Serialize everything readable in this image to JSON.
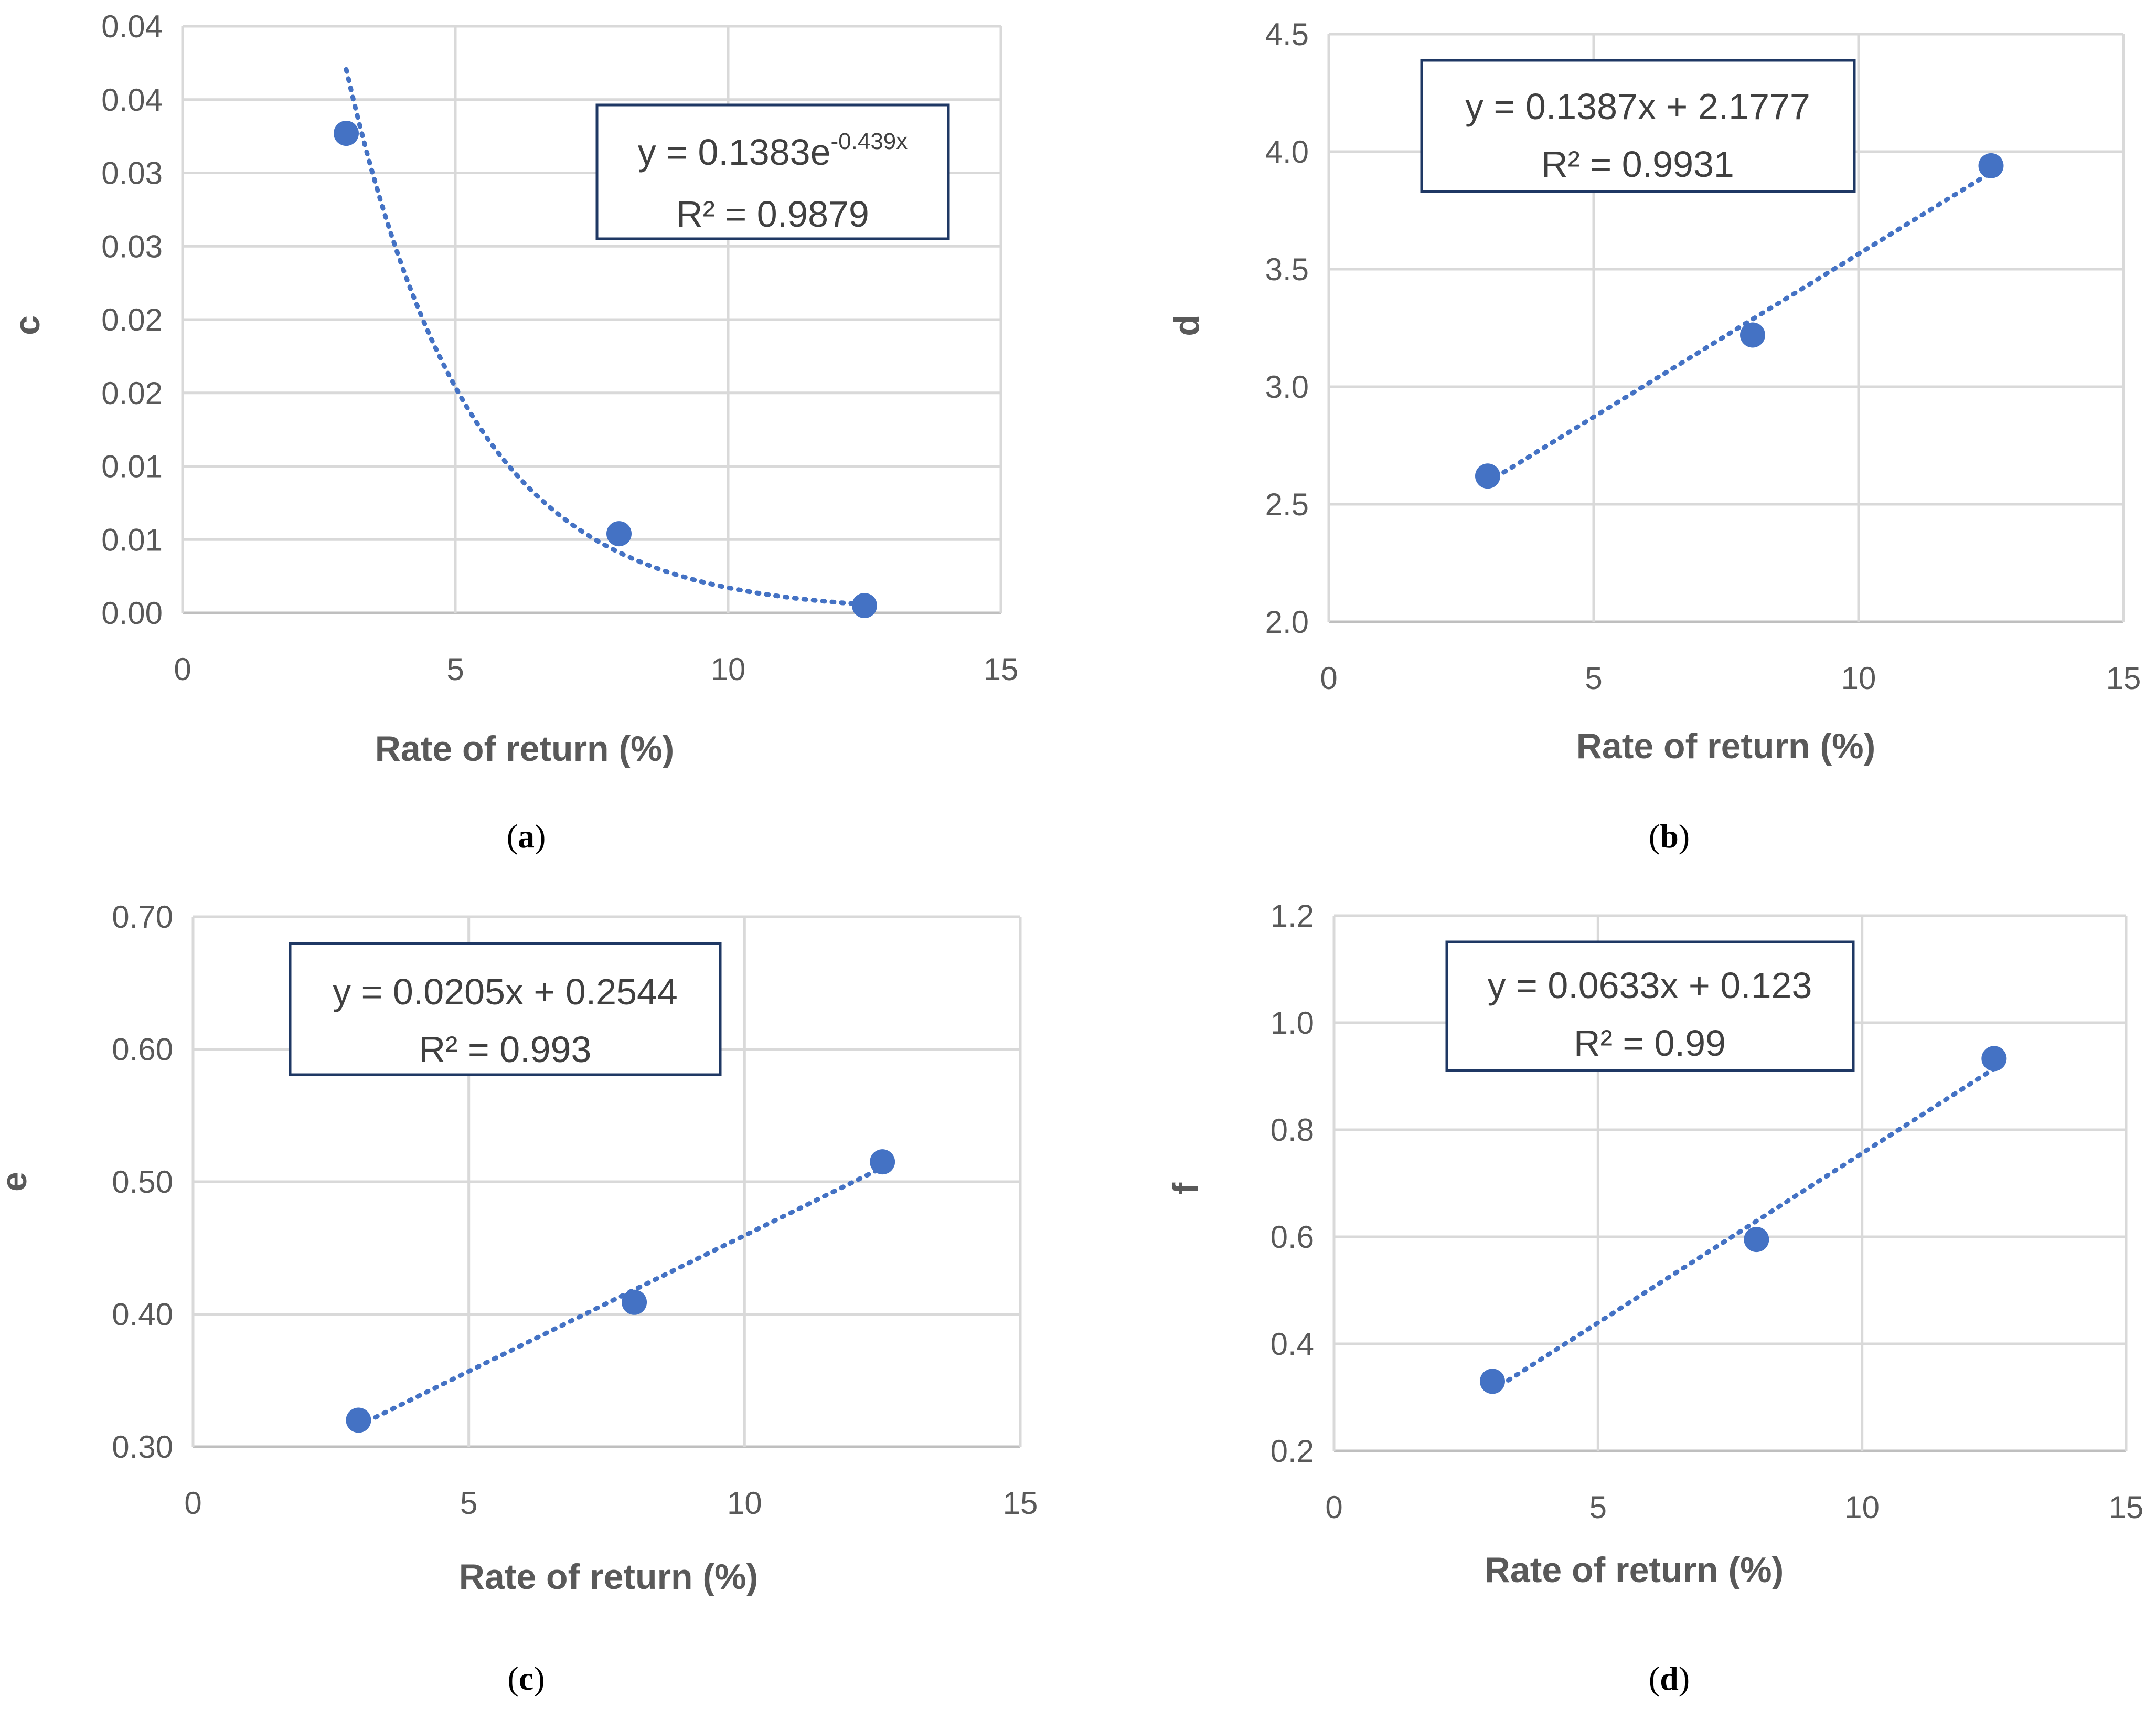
{
  "colors": {
    "marker": "#4472C4",
    "trendline": "#4472C4",
    "equation_box_border": "#1F3864",
    "gridline": "#D9D9D9"
  },
  "chart_data": [
    {
      "type": "scatter",
      "panel": "(a)",
      "panel_letter": "a",
      "xlabel": "Rate of return (%)",
      "ylabel": "c",
      "xlim": [
        0,
        15
      ],
      "ylim": [
        0,
        0.04
      ],
      "x_ticks": [
        0,
        5,
        10,
        15
      ],
      "x_tick_labels": [
        "0",
        "5",
        "10",
        "15"
      ],
      "y_ticks": [
        0,
        0.005,
        0.01,
        0.015,
        0.02,
        0.025,
        0.03,
        0.035,
        0.04
      ],
      "y_tick_labels": [
        "0.00",
        "0.01",
        "0.01",
        "0.02",
        "0.02",
        "0.03",
        "0.03",
        "0.04",
        "0.04"
      ],
      "x": [
        3,
        8,
        12.5
      ],
      "y": [
        0.0327,
        0.0054,
        0.0005
      ],
      "trendline": {
        "kind": "exponential",
        "a": 0.1383,
        "b": -0.439,
        "x_range": [
          3,
          12.5
        ]
      },
      "equation": {
        "prefix": "y = 0.1383e",
        "superscript": "-0.439x",
        "r2": "R² = 0.9879"
      },
      "grid": true,
      "legend": "none"
    },
    {
      "type": "scatter",
      "panel": "(b)",
      "panel_letter": "b",
      "xlabel": "Rate of return (%)",
      "ylabel": "d",
      "xlim": [
        0,
        15
      ],
      "ylim": [
        2,
        4.5
      ],
      "x_ticks": [
        0,
        5,
        10,
        15
      ],
      "x_tick_labels": [
        "0",
        "5",
        "10",
        "15"
      ],
      "y_ticks": [
        2,
        2.5,
        3,
        3.5,
        4,
        4.5
      ],
      "y_tick_labels": [
        "2.0",
        "2.5",
        "3.0",
        "3.5",
        "4.0",
        "4.5"
      ],
      "x": [
        3,
        8,
        12.5
      ],
      "y": [
        2.62,
        3.22,
        3.94
      ],
      "trendline": {
        "kind": "linear",
        "m": 0.1387,
        "b": 2.1777,
        "x_range": [
          3,
          12.5
        ]
      },
      "equation": {
        "prefix": "y = 0.1387x + 2.1777",
        "superscript": "",
        "r2": "R² = 0.9931"
      },
      "grid": true,
      "legend": "none"
    },
    {
      "type": "scatter",
      "panel": "(c)",
      "panel_letter": "c",
      "xlabel": "Rate of return (%)",
      "ylabel": "e",
      "xlim": [
        0,
        15
      ],
      "ylim": [
        0.3,
        0.7
      ],
      "x_ticks": [
        0,
        5,
        10,
        15
      ],
      "x_tick_labels": [
        "0",
        "5",
        "10",
        "15"
      ],
      "y_ticks": [
        0.3,
        0.4,
        0.5,
        0.6,
        0.7
      ],
      "y_tick_labels": [
        "0.30",
        "0.40",
        "0.50",
        "0.60",
        "0.70"
      ],
      "x": [
        3,
        8,
        12.5
      ],
      "y": [
        0.32,
        0.409,
        0.515
      ],
      "trendline": {
        "kind": "linear",
        "m": 0.0205,
        "b": 0.2544,
        "x_range": [
          3,
          12.5
        ]
      },
      "equation": {
        "prefix": "y = 0.0205x + 0.2544",
        "superscript": "",
        "r2": "R² = 0.993"
      },
      "grid": true,
      "legend": "none"
    },
    {
      "type": "scatter",
      "panel": "(d)",
      "panel_letter": "d",
      "xlabel": "Rate of return (%)",
      "ylabel": "f",
      "xlim": [
        0,
        15
      ],
      "ylim": [
        0.2,
        1.2
      ],
      "x_ticks": [
        0,
        5,
        10,
        15
      ],
      "x_tick_labels": [
        "0",
        "5",
        "10",
        "15"
      ],
      "y_ticks": [
        0.2,
        0.4,
        0.6,
        0.8,
        1.0,
        1.2
      ],
      "y_tick_labels": [
        "0.2",
        "0.4",
        "0.6",
        "0.8",
        "1.0",
        "1.2"
      ],
      "x": [
        3,
        8,
        12.5
      ],
      "y": [
        0.33,
        0.595,
        0.933
      ],
      "trendline": {
        "kind": "linear",
        "m": 0.0633,
        "b": 0.123,
        "x_range": [
          3,
          12.5
        ]
      },
      "equation": {
        "prefix": "y = 0.0633x + 0.123",
        "superscript": "",
        "r2": "R² = 0.99"
      },
      "grid": true,
      "legend": "none"
    }
  ]
}
